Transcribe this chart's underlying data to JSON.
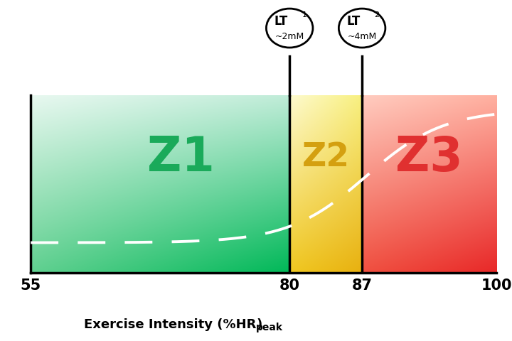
{
  "xmin": 55,
  "xmax": 100,
  "lt1": 80,
  "lt2": 87,
  "z1_label": "Z1",
  "z2_label": "Z2",
  "z3_label": "Z3",
  "z1_color": "#1aaa5a",
  "z2_color": "#d4a010",
  "z3_color": "#e03030",
  "z1_grad_top_left": "#d0f0e0",
  "z1_grad_bottom_right": "#00b050",
  "z2_grad_top": "#f8f0a0",
  "z2_grad_bottom": "#e8b820",
  "z3_grad_top_left": "#ffb8a8",
  "z3_grad_bottom_right": "#e83030",
  "lt1_detail": "~2mM",
  "lt2_detail": "~4mM",
  "xticks": [
    55,
    80,
    87,
    100
  ],
  "background_color": "#ffffff",
  "dashed_line_color": "#ffffff",
  "figure_width": 7.2,
  "figure_height": 4.8,
  "dpi": 100
}
